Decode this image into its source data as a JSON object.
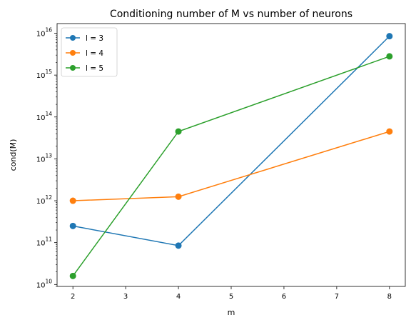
{
  "chart_data": {
    "type": "line",
    "title": "Conditioning number of M vs number of neurons",
    "xlabel": "m",
    "ylabel": "cond(M)",
    "x": [
      2,
      4,
      8
    ],
    "xlim": [
      1.7,
      8.3
    ],
    "xticks": [
      2,
      3,
      4,
      5,
      6,
      7,
      8
    ],
    "yscale": "log",
    "ylim": [
      9000000000.0,
      1.7e+16
    ],
    "ytick_exponents": [
      10,
      11,
      12,
      13,
      14,
      15,
      16
    ],
    "ytick_base": "10",
    "legend": "top-left",
    "grid": false,
    "series": [
      {
        "name": "l = 3",
        "color": "#1f77b4",
        "values": [
          250000000000.0,
          85000000000.0,
          8500000000000000.0
        ]
      },
      {
        "name": "l = 4",
        "color": "#ff7f0e",
        "values": [
          1000000000000.0,
          1250000000000.0,
          45000000000000.0
        ]
      },
      {
        "name": "l = 5",
        "color": "#2ca02c",
        "values": [
          16000000000.0,
          45000000000000.0,
          2800000000000000.0
        ]
      }
    ]
  }
}
